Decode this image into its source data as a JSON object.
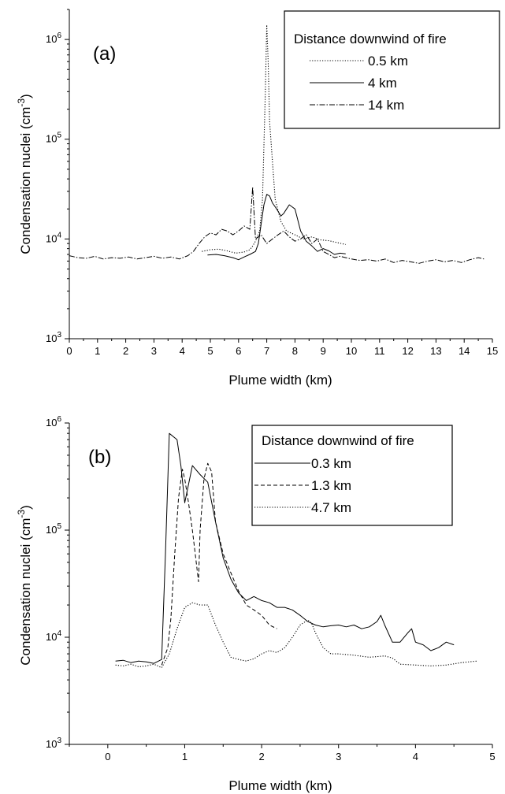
{
  "chart_data": [
    {
      "type": "line",
      "panel_label": "(a)",
      "xlabel": "Plume width (km)",
      "ylabel": "Condensation nuclei (cm",
      "ylabel_exp": "-3",
      "ylabel_close": ")",
      "yscale": "log",
      "xlim": [
        0,
        15
      ],
      "ylim": [
        1000,
        2000000
      ],
      "xticks": [
        "0",
        "1",
        "2",
        "3",
        "4",
        "5",
        "6",
        "7",
        "8",
        "9",
        "10",
        "11",
        "12",
        "13",
        "14",
        "15"
      ],
      "yticks": [
        {
          "base": "10",
          "exp": "3"
        },
        {
          "base": "10",
          "exp": "4"
        },
        {
          "base": "10",
          "exp": "5"
        },
        {
          "base": "10",
          "exp": "6"
        }
      ],
      "legend": {
        "title": "Distance downwind of fire",
        "position": "top-right"
      },
      "series": [
        {
          "name": "0.5 km",
          "style": "dotted",
          "x": [
            4.7,
            5.0,
            5.3,
            5.6,
            5.9,
            6.2,
            6.4,
            6.5,
            6.6,
            6.75,
            6.85,
            6.95,
            7.0,
            7.05,
            7.1,
            7.2,
            7.3,
            7.5,
            7.7,
            8.0,
            8.3,
            8.6,
            8.9,
            9.2,
            9.5,
            9.8
          ],
          "y": [
            7500,
            7800,
            7900,
            7600,
            7200,
            7400,
            7800,
            8500,
            9500,
            12000,
            25000,
            300000,
            1400000,
            600000,
            150000,
            60000,
            25000,
            15000,
            12000,
            11000,
            10000,
            10500,
            9800,
            9600,
            9200,
            8800
          ]
        },
        {
          "name": "4 km",
          "style": "solid",
          "x": [
            4.9,
            5.2,
            5.5,
            5.8,
            6.0,
            6.2,
            6.4,
            6.6,
            6.7,
            6.8,
            6.9,
            7.0,
            7.1,
            7.2,
            7.3,
            7.4,
            7.5,
            7.6,
            7.7,
            7.8,
            7.9,
            8.0,
            8.2,
            8.4,
            8.6,
            8.8,
            9.0,
            9.2,
            9.4,
            9.6,
            9.8
          ],
          "y": [
            6900,
            7000,
            6800,
            6500,
            6200,
            6600,
            7000,
            7500,
            9000,
            14000,
            22000,
            28000,
            27000,
            23000,
            21000,
            19000,
            17000,
            18000,
            20000,
            22000,
            21000,
            20000,
            12000,
            9500,
            8500,
            7500,
            8000,
            7600,
            7000,
            7200,
            7100
          ]
        },
        {
          "name": "14 km",
          "style": "dashdot",
          "x": [
            0,
            0.3,
            0.6,
            0.9,
            1.2,
            1.5,
            1.8,
            2.1,
            2.4,
            2.7,
            3.0,
            3.3,
            3.6,
            3.9,
            4.2,
            4.4,
            4.6,
            4.8,
            5.0,
            5.2,
            5.4,
            5.6,
            5.8,
            6.0,
            6.2,
            6.4,
            6.5,
            6.6,
            6.8,
            7.0,
            7.2,
            7.4,
            7.6,
            7.8,
            8.0,
            8.2,
            8.4,
            8.6,
            8.8,
            9.0,
            9.2,
            9.4,
            9.6,
            9.8,
            10.0,
            10.3,
            10.6,
            10.9,
            11.2,
            11.5,
            11.8,
            12.1,
            12.4,
            12.7,
            13.0,
            13.3,
            13.6,
            13.9,
            14.2,
            14.5,
            14.7
          ],
          "y": [
            6800,
            6500,
            6400,
            6700,
            6300,
            6500,
            6400,
            6600,
            6300,
            6500,
            6700,
            6400,
            6600,
            6300,
            6800,
            7500,
            9000,
            10500,
            11500,
            11000,
            12500,
            12000,
            11000,
            12000,
            13500,
            12500,
            33000,
            10000,
            11000,
            9000,
            10000,
            11000,
            12000,
            10500,
            9500,
            10000,
            11000,
            9000,
            10000,
            7500,
            7000,
            6500,
            6700,
            6500,
            6300,
            6100,
            6200,
            6000,
            6300,
            5800,
            6100,
            5900,
            5700,
            6000,
            6200,
            5900,
            6100,
            5800,
            6200,
            6500,
            6300
          ]
        }
      ]
    },
    {
      "type": "line",
      "panel_label": "(b)",
      "xlabel": "Plume width (km)",
      "ylabel": "Condensation nuclei (cm",
      "ylabel_exp": "-3",
      "ylabel_close": ")",
      "yscale": "log",
      "xlim": [
        -0.5,
        5
      ],
      "ylim": [
        1000,
        1000000
      ],
      "xticks": [
        "0",
        "1",
        "2",
        "3",
        "4",
        "5"
      ],
      "yticks": [
        {
          "base": "10",
          "exp": "3"
        },
        {
          "base": "10",
          "exp": "4"
        },
        {
          "base": "10",
          "exp": "5"
        },
        {
          "base": "10",
          "exp": "6"
        }
      ],
      "legend": {
        "title": "Distance downwind of fire",
        "position": "top-right"
      },
      "series": [
        {
          "name": "0.3 km",
          "style": "solid",
          "x": [
            0.1,
            0.2,
            0.3,
            0.4,
            0.5,
            0.6,
            0.7,
            0.75,
            0.8,
            0.9,
            0.95,
            1.0,
            1.1,
            1.2,
            1.3,
            1.4,
            1.5,
            1.6,
            1.7,
            1.8,
            1.9,
            2.0,
            2.1,
            2.2,
            2.3,
            2.4,
            2.5,
            2.6,
            2.7,
            2.8,
            2.9,
            3.0,
            3.1,
            3.2,
            3.3,
            3.4,
            3.5,
            3.55,
            3.6,
            3.7,
            3.8,
            3.9,
            3.95,
            4.0,
            4.1,
            4.2,
            4.3,
            4.4,
            4.5
          ],
          "y": [
            6000,
            6100,
            5800,
            6000,
            5900,
            5700,
            6200,
            60000,
            800000,
            700000,
            400000,
            180000,
            400000,
            330000,
            280000,
            120000,
            55000,
            35000,
            26000,
            22000,
            24000,
            22000,
            21000,
            19000,
            19000,
            18000,
            16000,
            14000,
            13000,
            12500,
            12800,
            13000,
            12500,
            13000,
            12000,
            12500,
            14000,
            16000,
            13000,
            9000,
            9000,
            11000,
            12000,
            9000,
            8500,
            7500,
            8000,
            9000,
            8500
          ]
        },
        {
          "name": "1.3 km",
          "style": "dashed",
          "x": [
            0.7,
            0.78,
            0.82,
            0.87,
            0.92,
            0.97,
            1.0,
            1.05,
            1.1,
            1.15,
            1.18,
            1.2,
            1.25,
            1.3,
            1.35,
            1.4,
            1.5,
            1.6,
            1.7,
            1.8,
            1.9,
            2.0,
            2.1,
            2.2
          ],
          "y": [
            5500,
            8000,
            15000,
            60000,
            200000,
            370000,
            300000,
            180000,
            100000,
            50000,
            33000,
            100000,
            300000,
            420000,
            350000,
            120000,
            60000,
            40000,
            27000,
            20000,
            18000,
            16000,
            13000,
            12000
          ]
        },
        {
          "name": "4.7 km",
          "style": "dotted",
          "x": [
            0.1,
            0.2,
            0.3,
            0.4,
            0.5,
            0.6,
            0.7,
            0.8,
            0.9,
            1.0,
            1.1,
            1.2,
            1.3,
            1.4,
            1.5,
            1.6,
            1.7,
            1.8,
            1.9,
            2.0,
            2.1,
            2.2,
            2.3,
            2.4,
            2.5,
            2.6,
            2.65,
            2.7,
            2.8,
            2.9,
            3.0,
            3.2,
            3.4,
            3.6,
            3.7,
            3.8,
            4.0,
            4.2,
            4.4,
            4.6,
            4.8
          ],
          "y": [
            5500,
            5400,
            5600,
            5300,
            5400,
            5600,
            5200,
            7000,
            12000,
            19000,
            21000,
            20000,
            20000,
            13000,
            9000,
            6500,
            6200,
            6000,
            6300,
            7000,
            7500,
            7200,
            8000,
            10000,
            13000,
            14500,
            13500,
            11000,
            8000,
            7000,
            7000,
            6800,
            6500,
            6700,
            6400,
            5600,
            5500,
            5400,
            5500,
            5800,
            6000
          ]
        }
      ]
    }
  ]
}
